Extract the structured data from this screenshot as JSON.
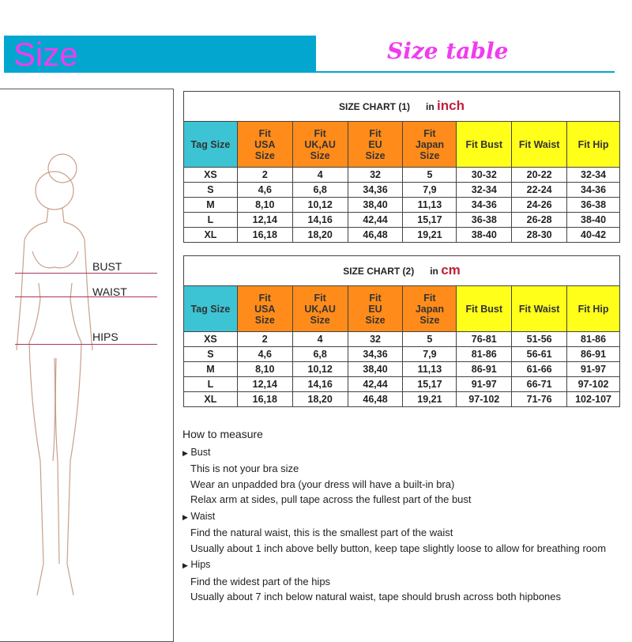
{
  "header": {
    "title": "Size",
    "subtitle": "Size table",
    "band_color": "#02a6cf",
    "title_color": "#f03cf0"
  },
  "figure": {
    "labels": {
      "bust": "BUST",
      "waist": "WAIST",
      "hips": "HIPS"
    }
  },
  "columns": [
    "Tag Size",
    "Fit USA Size",
    "Fit UK,AU Size",
    "Fit EU Size",
    "Fit Japan Size",
    "Fit Bust",
    "Fit Waist",
    "Fit Hip"
  ],
  "charts": [
    {
      "title": "SIZE CHART (1)",
      "unit_prefix": "in",
      "unit": "inch",
      "rows": [
        [
          "XS",
          "2",
          "4",
          "32",
          "5",
          "30-32",
          "20-22",
          "32-34"
        ],
        [
          "S",
          "4,6",
          "6,8",
          "34,36",
          "7,9",
          "32-34",
          "22-24",
          "34-36"
        ],
        [
          "M",
          "8,10",
          "10,12",
          "38,40",
          "11,13",
          "34-36",
          "24-26",
          "36-38"
        ],
        [
          "L",
          "12,14",
          "14,16",
          "42,44",
          "15,17",
          "36-38",
          "26-28",
          "38-40"
        ],
        [
          "XL",
          "16,18",
          "18,20",
          "46,48",
          "19,21",
          "38-40",
          "28-30",
          "40-42"
        ]
      ]
    },
    {
      "title": "SIZE CHART (2)",
      "unit_prefix": "in",
      "unit": "cm",
      "rows": [
        [
          "XS",
          "2",
          "4",
          "32",
          "5",
          "76-81",
          "51-56",
          "81-86"
        ],
        [
          "S",
          "4,6",
          "6,8",
          "34,36",
          "7,9",
          "81-86",
          "56-61",
          "86-91"
        ],
        [
          "M",
          "8,10",
          "10,12",
          "38,40",
          "11,13",
          "86-91",
          "61-66",
          "91-97"
        ],
        [
          "L",
          "12,14",
          "14,16",
          "42,44",
          "15,17",
          "91-97",
          "66-71",
          "97-102"
        ],
        [
          "XL",
          "16,18",
          "18,20",
          "46,48",
          "19,21",
          "97-102",
          "71-76",
          "102-107"
        ]
      ]
    }
  ],
  "measure": {
    "heading": "How to measure",
    "sections": [
      {
        "title": "Bust",
        "lines": [
          "This is not your bra size",
          "Wear an unpadded bra (your dress will have a built-in bra)",
          "Relax arm at sides, pull tape across the fullest part of the bust"
        ]
      },
      {
        "title": "Waist",
        "lines": [
          "Find the natural waist, this is the smallest part of the waist",
          "Usually about 1 inch above belly button, keep tape slightly loose to allow for breathing room"
        ]
      },
      {
        "title": "Hips",
        "lines": [
          "Find the widest part of the hips",
          "Usually about 7 inch below natural waist, tape should brush across both hipbones"
        ]
      }
    ]
  }
}
